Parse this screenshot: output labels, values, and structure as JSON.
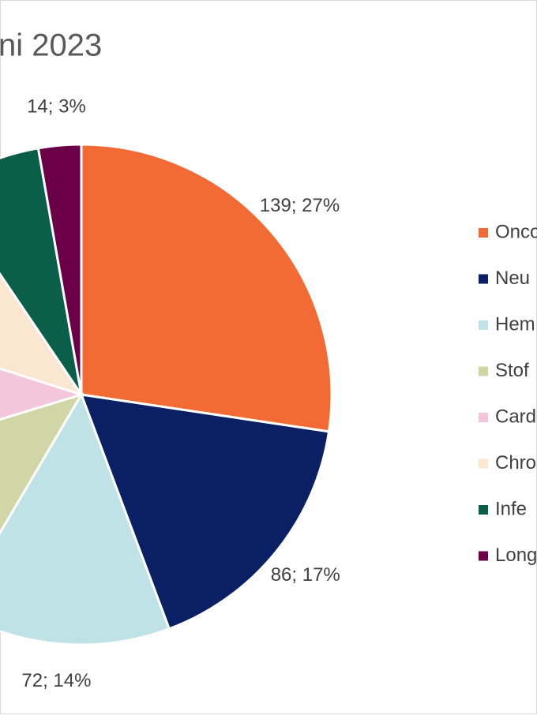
{
  "chart_data": {
    "type": "pie",
    "title": "ni 2023",
    "categories": [
      "Onco",
      "Neu",
      "Hem",
      "Stof",
      "Card",
      "Chro",
      "Infe",
      "Long"
    ],
    "values": [
      139,
      86,
      72,
      60,
      49,
      54,
      34,
      14
    ],
    "value_labels": [
      "139; 27%",
      "86; 17%",
      "72; 14%",
      null,
      null,
      null,
      null,
      "14; 3%"
    ],
    "colors": [
      "#f26b35",
      "#0b1f65",
      "#bfe2e6",
      "#d0d6a6",
      "#f3c6dc",
      "#fbe6d2",
      "#0b5e4a",
      "#6b0049"
    ],
    "legend": "right"
  }
}
